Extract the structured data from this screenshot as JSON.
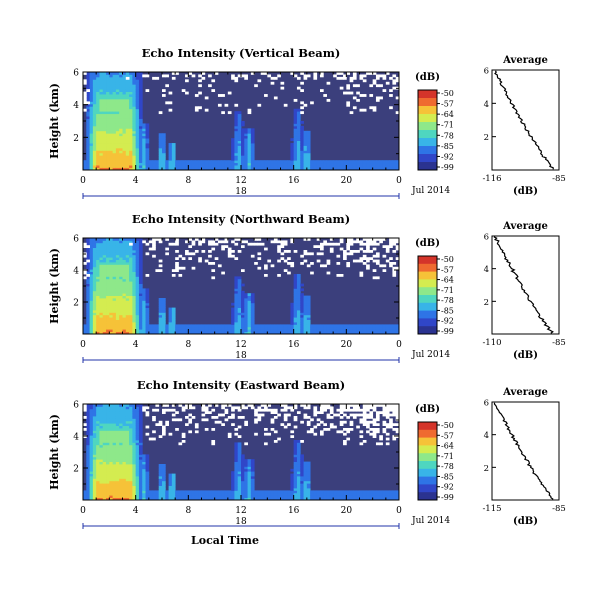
{
  "chart_data": [
    {
      "type": "heatmap",
      "title": "Echo Intensity (Vertical Beam)",
      "ylabel": "Height (km)",
      "yticks": [
        "2",
        "4",
        "6"
      ],
      "ylim": [
        0,
        6
      ],
      "xticks": [
        "0",
        "4",
        "8",
        "12",
        "16",
        "20",
        "0"
      ],
      "xlim": [
        0,
        24
      ],
      "date_tick": "18",
      "date_label": "Jul 2014",
      "colorbar": {
        "label": "(dB)",
        "ticks": [
          "-50",
          "-57",
          "-64",
          "-71",
          "-78",
          "-85",
          "-92",
          "-99"
        ]
      },
      "average": {
        "title": "Average",
        "xlabel": "(dB)",
        "xticks": [
          "-116",
          "-85"
        ],
        "xlim": [
          -116,
          -85
        ],
        "yticks": [
          "2",
          "4",
          "6"
        ],
        "ylim": [
          0,
          6
        ]
      }
    },
    {
      "type": "heatmap",
      "title": "Echo Intensity (Northward Beam)",
      "ylabel": "Height (km)",
      "yticks": [
        "2",
        "4",
        "6"
      ],
      "ylim": [
        0,
        6
      ],
      "xticks": [
        "0",
        "4",
        "8",
        "12",
        "16",
        "20",
        "0"
      ],
      "xlim": [
        0,
        24
      ],
      "date_tick": "18",
      "date_label": "Jul 2014",
      "colorbar": {
        "label": "(dB)",
        "ticks": [
          "-50",
          "-57",
          "-64",
          "-71",
          "-78",
          "-85",
          "-92",
          "-99"
        ]
      },
      "average": {
        "title": "Average",
        "xlabel": "(dB)",
        "xticks": [
          "-110",
          "-85"
        ],
        "xlim": [
          -110,
          -85
        ],
        "yticks": [
          "2",
          "4",
          "6"
        ],
        "ylim": [
          0,
          6
        ]
      }
    },
    {
      "type": "heatmap",
      "title": "Echo Intensity (Eastward Beam)",
      "ylabel": "Height (km)",
      "yticks": [
        "2",
        "4",
        "6"
      ],
      "ylim": [
        0,
        6
      ],
      "xticks": [
        "0",
        "4",
        "8",
        "12",
        "16",
        "20",
        "0"
      ],
      "xlim": [
        0,
        24
      ],
      "date_tick": "18",
      "date_label": "Jul 2014",
      "xlabel": "Local Time",
      "colorbar": {
        "label": "(dB)",
        "ticks": [
          "-50",
          "-57",
          "-64",
          "-71",
          "-78",
          "-85",
          "-92",
          "-99"
        ]
      },
      "average": {
        "title": "Average",
        "xlabel": "(dB)",
        "xticks": [
          "-115",
          "-85"
        ],
        "xlim": [
          -115,
          -85
        ],
        "yticks": [
          "2",
          "4",
          "6"
        ],
        "ylim": [
          0,
          6
        ]
      }
    }
  ],
  "colors": {
    "background_fill": "#3b3f7c",
    "colormap": [
      "#2b3390",
      "#3046c8",
      "#2f74e6",
      "#38b4e8",
      "#4fd6c0",
      "#8ee88a",
      "#d4ec50",
      "#f6c238",
      "#ef6a30",
      "#d4342a"
    ]
  }
}
